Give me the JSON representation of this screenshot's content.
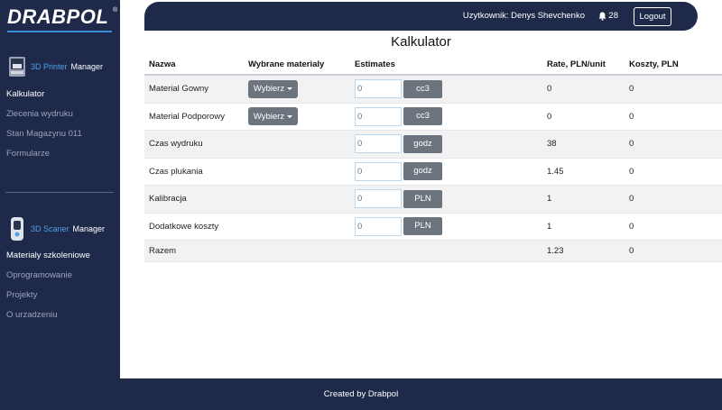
{
  "brand": {
    "logo_text": "DRABPOL",
    "reg_mark": "®"
  },
  "sidebar": {
    "printer_section": {
      "accent": "3D Printer",
      "rest": " Manager"
    },
    "printer_items": [
      {
        "label": "Kalkulator",
        "active": true
      },
      {
        "label": "Zlecenia wydruku",
        "active": false
      },
      {
        "label": "Stan Magazynu 011",
        "active": false
      },
      {
        "label": "Formularze",
        "active": false
      }
    ],
    "scanner_section": {
      "accent": "3D Scaner",
      "rest": " Manager"
    },
    "scanner_items": [
      {
        "label": "Materialy szkoleniowe",
        "active": true
      },
      {
        "label": "Oprogramowanie",
        "active": false
      },
      {
        "label": "Projekty",
        "active": false
      },
      {
        "label": "O urzadzeniu",
        "active": false
      }
    ]
  },
  "topbar": {
    "user": "Uzytkownik: Denys Shevchenko",
    "notifications": "28",
    "logout": "Logout"
  },
  "page": {
    "title": "Kalkulator"
  },
  "table": {
    "headers": [
      "Nazwa",
      "Wybrane materialy",
      "Estimates",
      "Rate, PLN/unit",
      "Koszty, PLN"
    ],
    "rows": [
      {
        "name": "Material Gowny",
        "select": "Wybierz",
        "placeholder": "0",
        "unit": "cc3",
        "rate": "0",
        "cost": "0"
      },
      {
        "name": "Material Podporowy",
        "select": "Wybierz",
        "placeholder": "0",
        "unit": "cc3",
        "rate": "0",
        "cost": "0"
      },
      {
        "name": "Czas wydruku",
        "select": "",
        "placeholder": "0",
        "unit": "godz",
        "rate": "38",
        "cost": "0"
      },
      {
        "name": "Czas plukania",
        "select": "",
        "placeholder": "0",
        "unit": "godz",
        "rate": "1.45",
        "cost": "0"
      },
      {
        "name": "Kalibracja",
        "select": "",
        "placeholder": "0",
        "unit": "PLN",
        "rate": "1",
        "cost": "0"
      },
      {
        "name": "Dodatkowe koszty",
        "select": "",
        "placeholder": "0",
        "unit": "PLN",
        "rate": "1",
        "cost": "0"
      }
    ],
    "total": {
      "name": "Razem",
      "rate": "1.23",
      "cost": "0"
    }
  },
  "footer": {
    "text": "Created by Drabpol"
  },
  "colors": {
    "navy": "#1f2a4a",
    "accent": "#4aa3e6",
    "button_gray": "#6c757d"
  }
}
